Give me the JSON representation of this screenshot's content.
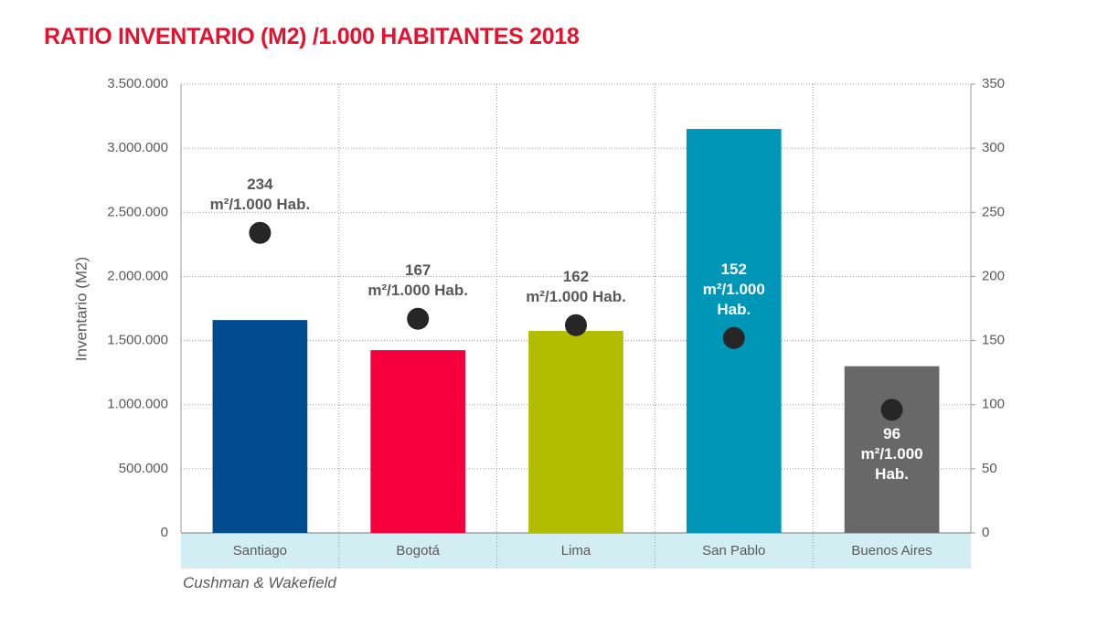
{
  "chart_data": {
    "type": "bar",
    "title": "RATIO INVENTARIO (M2) /1.000 HABITANTES 2018",
    "ylabel": "Inventario (M2)",
    "source": "Cushman & Wakefield",
    "categories": [
      "Santiago",
      "Bogotá",
      "Lima",
      "San Pablo",
      "Buenos Aires"
    ],
    "series": [
      {
        "values": [
          1660000,
          1425000,
          1575000,
          3150000,
          1300000
        ],
        "colors": [
          "#004a8f",
          "#f5003d",
          "#b2bd00",
          "#0096b8",
          "#686868"
        ]
      },
      {
        "values": [
          234,
          167,
          162,
          152,
          96
        ],
        "value_labels": [
          "234\nm²/1.000 Hab.",
          "167\nm²/1.000 Hab.",
          "162\nm²/1.000 Hab.",
          "152\nm²/1.000\nHab.",
          "96\nm²/1.000\nHab."
        ],
        "color": "#262626",
        "axis": "y2"
      }
    ],
    "ylim": [
      0,
      3500000
    ],
    "yticks": [
      0,
      {
        "value": 500000,
        "label": "500.000"
      },
      {
        "value": 1000000,
        "label": "1.000.000"
      },
      {
        "value": 1500000,
        "label": "1.500.000"
      },
      {
        "value": 2000000,
        "label": "2.000.000"
      },
      {
        "value": 2500000,
        "label": "2.500.000"
      },
      {
        "value": 3000000,
        "label": "3.000.000"
      },
      {
        "value": 3500000,
        "label": "3.500.000"
      }
    ],
    "y2lim": [
      0,
      350
    ],
    "y2ticks": [
      0,
      50,
      100,
      150,
      200,
      250,
      300,
      350
    ],
    "grid": true
  }
}
